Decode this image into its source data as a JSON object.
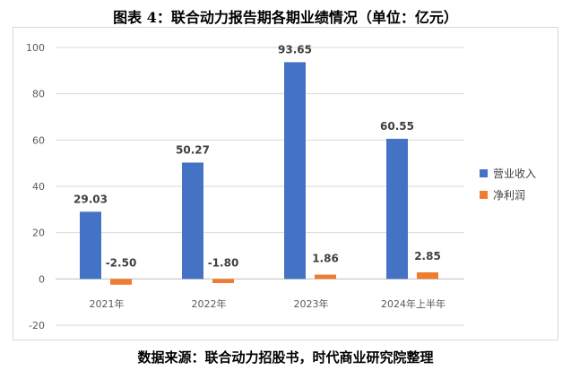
{
  "title": "图表 4：联合动力报告期各期业绩情况（单位：亿元）",
  "source": "数据来源：联合动力招股书，时代商业研究院整理",
  "chart_data": {
    "type": "bar",
    "categories": [
      "2021年",
      "2022年",
      "2023年",
      "2024年上半年"
    ],
    "series": [
      {
        "name": "营业收入",
        "values": [
          29.03,
          50.27,
          93.65,
          60.55
        ],
        "color": "#4472C4"
      },
      {
        "name": "净利润",
        "values": [
          -2.5,
          -1.8,
          1.86,
          2.85
        ],
        "color": "#ED7D31"
      }
    ],
    "data_labels": [
      [
        "29.03",
        "50.27",
        "93.65",
        "60.55"
      ],
      [
        "-2.50",
        "-1.80",
        "1.86",
        "2.85"
      ]
    ],
    "yticks": [
      -20,
      0,
      20,
      40,
      60,
      80,
      100
    ],
    "ylim": [
      -20,
      100
    ],
    "grid": true,
    "legend_position": "right"
  }
}
